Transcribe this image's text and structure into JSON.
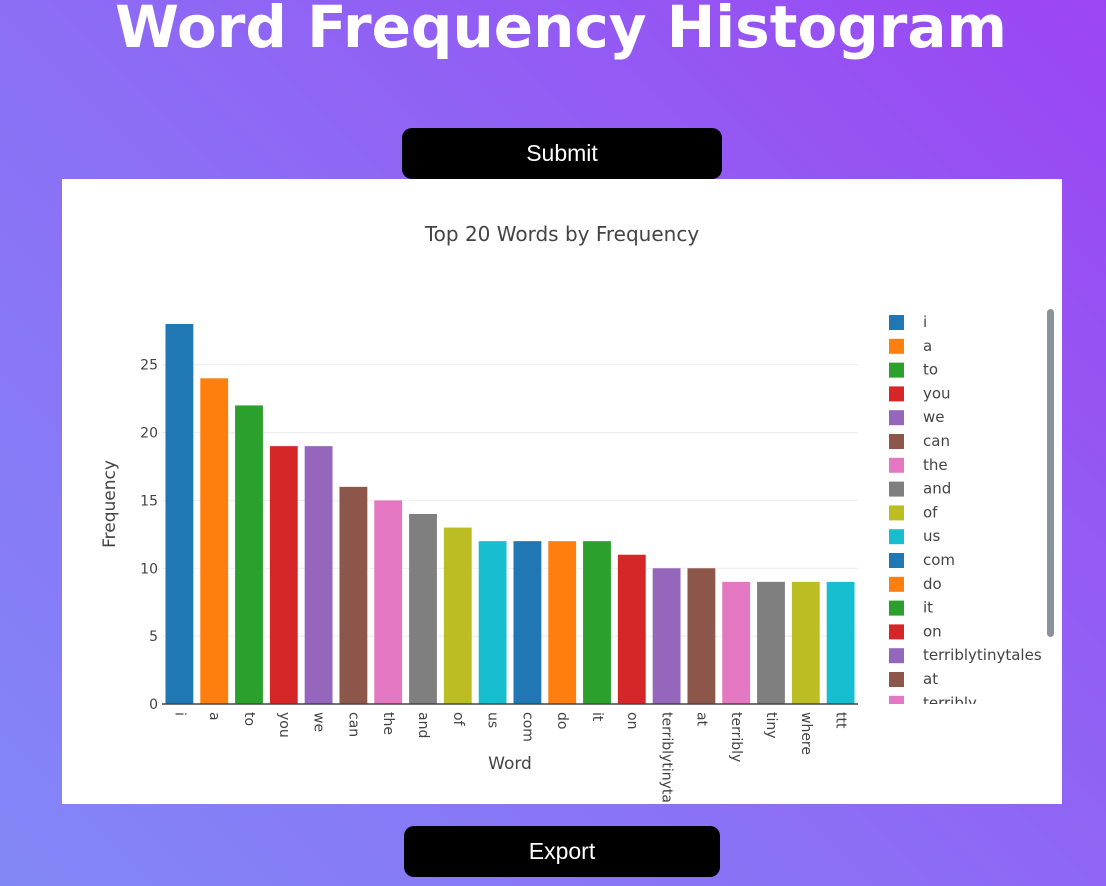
{
  "page": {
    "title": "Word Frequency Histogram",
    "submit_label": "Submit",
    "export_label": "Export"
  },
  "colors": {
    "palette": [
      "#1f77b4",
      "#ff7f0e",
      "#2ca02c",
      "#d62728",
      "#9467bd",
      "#8c564b",
      "#e377c2",
      "#7f7f7f",
      "#bcbd22",
      "#17becf"
    ]
  },
  "chart_data": {
    "type": "bar",
    "title": "Top 20 Words by Frequency",
    "xlabel": "Word",
    "ylabel": "Frequency",
    "categories": [
      "i",
      "a",
      "to",
      "you",
      "we",
      "can",
      "the",
      "and",
      "of",
      "us",
      "com",
      "do",
      "it",
      "on",
      "terriblytinytales",
      "at",
      "terribly",
      "tiny",
      "where",
      "ttt"
    ],
    "x_tick_labels": [
      "i",
      "a",
      "to",
      "you",
      "we",
      "can",
      "the",
      "and",
      "of",
      "us",
      "com",
      "do",
      "it",
      "on",
      "terriblytinyta",
      "at",
      "terribly",
      "tiny",
      "where",
      "ttt"
    ],
    "values": [
      28,
      24,
      22,
      19,
      19,
      16,
      15,
      14,
      13,
      12,
      12,
      12,
      12,
      11,
      10,
      10,
      9,
      9,
      9,
      9
    ],
    "ylim": [
      0,
      28
    ],
    "yticks": [
      0,
      5,
      10,
      15,
      20,
      25
    ],
    "grid": true,
    "legend": {
      "placement": "right",
      "visible_entries": [
        "i",
        "a",
        "to",
        "you",
        "we",
        "can",
        "the",
        "and",
        "of",
        "us",
        "com",
        "do",
        "it",
        "on",
        "terriblytinytales",
        "at",
        "terribly"
      ],
      "scrollable": true
    }
  }
}
